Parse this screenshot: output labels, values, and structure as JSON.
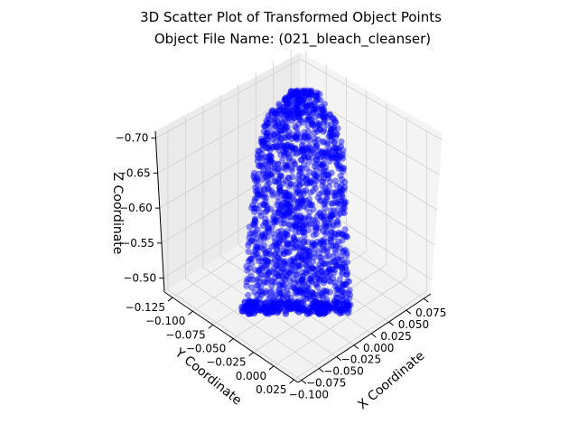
{
  "chart_data": {
    "type": "scatter",
    "projection": "3d",
    "title": "3D Scatter Plot of Transformed Object Points",
    "subtitle": "Object File Name: (021_bleach_cleanser)",
    "xlabel": "X Coordinate",
    "ylabel": "Y Coordinate",
    "zlabel": "Z Coordinate",
    "x_ticks": [
      "−0.100",
      "−0.075",
      "−0.050",
      "−0.025",
      "0.000",
      "0.025",
      "0.050",
      "0.075"
    ],
    "y_ticks": [
      "−0.125",
      "−0.100",
      "−0.075",
      "−0.050",
      "−0.025",
      "0.000",
      "0.025"
    ],
    "z_ticks": [
      "−0.50",
      "−0.55",
      "−0.60",
      "−0.65",
      "−0.70"
    ],
    "xlim": [
      -0.105,
      0.085
    ],
    "ylim": [
      -0.135,
      0.03
    ],
    "zlim": [
      -0.48,
      -0.71
    ],
    "grid": true,
    "marker_color": "#0000ff",
    "pane_color": "#f2f2f2",
    "grid_color": "#d0d0d0"
  }
}
